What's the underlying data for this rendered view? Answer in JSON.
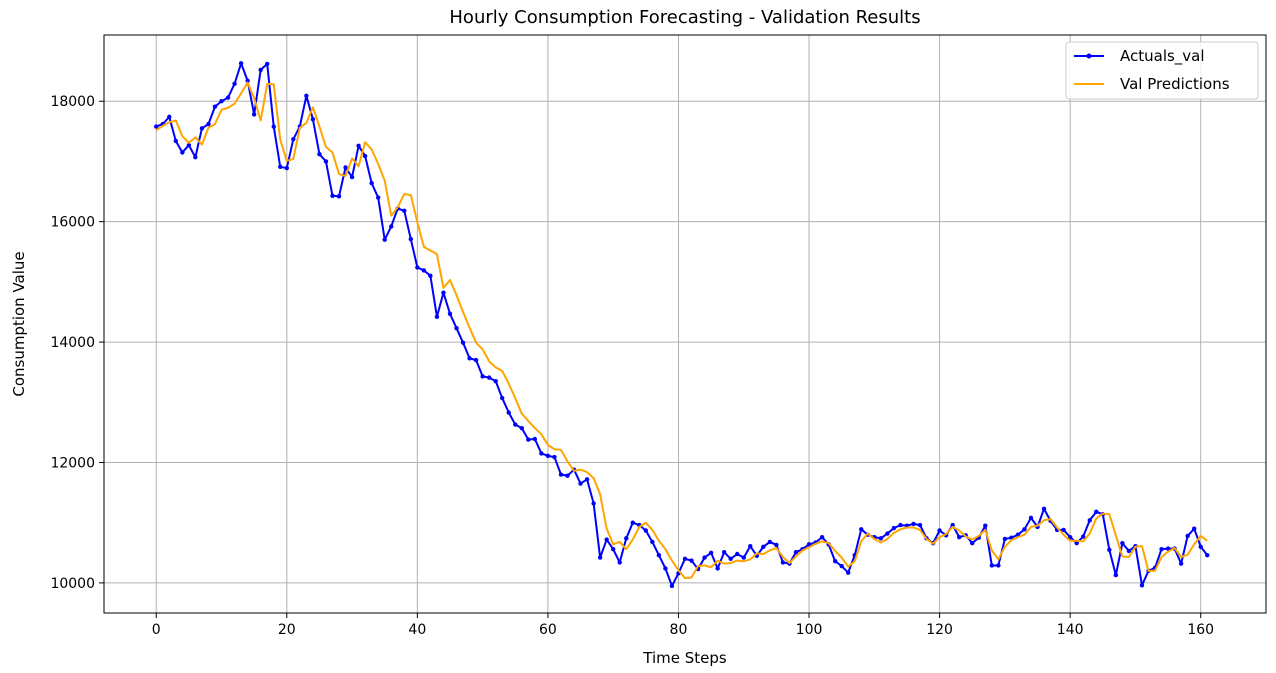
{
  "chart_data": {
    "type": "line",
    "title": "Hourly Consumption Forecasting - Validation Results",
    "xlabel": "Time Steps",
    "ylabel": "Consumption Value",
    "xlim": [
      -8,
      170
    ],
    "ylim": [
      9500,
      19100
    ],
    "xticks": [
      0,
      20,
      40,
      60,
      80,
      100,
      120,
      140,
      160
    ],
    "yticks": [
      10000,
      12000,
      14000,
      16000,
      18000
    ],
    "grid": true,
    "legend_position": "top-right",
    "series": [
      {
        "name": "Actuals_val",
        "color": "#0000ff",
        "marker": "dot",
        "values": [
          17580,
          17620,
          17740,
          17340,
          17150,
          17270,
          17070,
          17550,
          17620,
          17910,
          18000,
          18060,
          18290,
          18630,
          18340,
          17780,
          18520,
          18620,
          17580,
          16910,
          16890,
          17370,
          17580,
          18090,
          17700,
          17120,
          17000,
          16430,
          16420,
          16900,
          16740,
          17260,
          17090,
          16640,
          16400,
          15700,
          15920,
          16220,
          16180,
          15710,
          15240,
          15190,
          15100,
          14420,
          14820,
          14470,
          14230,
          13990,
          13730,
          13700,
          13430,
          13410,
          13350,
          13070,
          12830,
          12630,
          12570,
          12380,
          12390,
          12150,
          12110,
          12090,
          11800,
          11780,
          11880,
          11650,
          11720,
          11320,
          10420,
          10720,
          10560,
          10340,
          10740,
          11000,
          10960,
          10870,
          10680,
          10460,
          10240,
          9950,
          10160,
          10400,
          10370,
          10230,
          10420,
          10500,
          10240,
          10510,
          10400,
          10480,
          10420,
          10610,
          10450,
          10600,
          10680,
          10630,
          10340,
          10320,
          10510,
          10560,
          10640,
          10670,
          10760,
          10640,
          10360,
          10280,
          10170,
          10460,
          10890,
          10800,
          10760,
          10740,
          10820,
          10910,
          10960,
          10950,
          10980,
          10960,
          10740,
          10660,
          10870,
          10790,
          10960,
          10760,
          10790,
          10660,
          10750,
          10950,
          10290,
          10290,
          10730,
          10750,
          10800,
          10890,
          11080,
          10930,
          11230,
          11030,
          10880,
          10880,
          10760,
          10660,
          10770,
          11040,
          11180,
          11140,
          10550,
          10130,
          10660,
          10530,
          10610,
          9960,
          10200,
          10250,
          10560,
          10570,
          10570,
          10320,
          10780,
          10900,
          10600,
          10460
        ]
      },
      {
        "name": "Val Predictions",
        "color": "#ffa500",
        "marker": "none",
        "values": [
          17520,
          17590,
          17650,
          17680,
          17420,
          17310,
          17400,
          17280,
          17560,
          17620,
          17860,
          17890,
          17960,
          18130,
          18310,
          18050,
          17680,
          18290,
          18280,
          17360,
          17010,
          17040,
          17560,
          17640,
          17900,
          17580,
          17240,
          17150,
          16790,
          16760,
          17050,
          16920,
          17320,
          17200,
          16960,
          16680,
          16100,
          16240,
          16460,
          16440,
          15990,
          15580,
          15520,
          15460,
          14900,
          15030,
          14780,
          14500,
          14240,
          13990,
          13880,
          13680,
          13580,
          13520,
          13310,
          13070,
          12810,
          12690,
          12570,
          12470,
          12290,
          12220,
          12210,
          12020,
          11860,
          11880,
          11840,
          11740,
          11470,
          10900,
          10640,
          10680,
          10560,
          10720,
          10930,
          11000,
          10880,
          10700,
          10560,
          10370,
          10210,
          10080,
          10090,
          10280,
          10290,
          10260,
          10370,
          10320,
          10330,
          10370,
          10360,
          10390,
          10490,
          10480,
          10540,
          10580,
          10430,
          10330,
          10440,
          10540,
          10590,
          10650,
          10690,
          10660,
          10530,
          10420,
          10270,
          10360,
          10690,
          10820,
          10730,
          10670,
          10730,
          10830,
          10890,
          10920,
          10920,
          10880,
          10730,
          10650,
          10760,
          10810,
          10930,
          10870,
          10770,
          10720,
          10780,
          10880,
          10540,
          10390,
          10600,
          10710,
          10760,
          10800,
          10930,
          10950,
          11040,
          11060,
          10920,
          10800,
          10700,
          10700,
          10690,
          10820,
          11070,
          11150,
          11140,
          10790,
          10440,
          10430,
          10600,
          10610,
          10200,
          10200,
          10430,
          10520,
          10580,
          10430,
          10470,
          10640,
          10780,
          10700
        ]
      }
    ]
  }
}
